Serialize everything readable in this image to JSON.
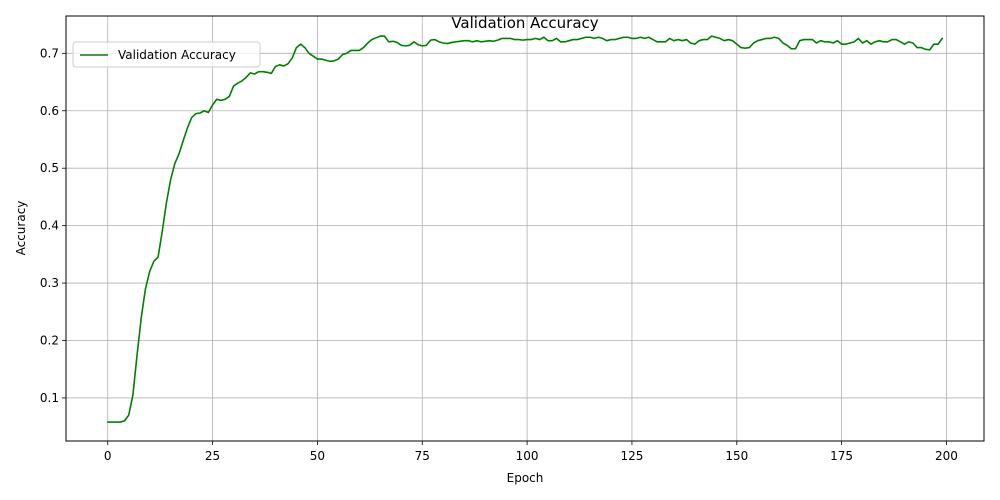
{
  "chart_data": {
    "type": "line",
    "title": "Validation Accuracy",
    "xlabel": "Epoch",
    "ylabel": "Accuracy",
    "xlim": [
      -9.95,
      208.95
    ],
    "ylim": [
      0.025,
      0.765
    ],
    "xticks": [
      0,
      25,
      50,
      75,
      100,
      125,
      150,
      175,
      200
    ],
    "yticks": [
      0.1,
      0.2,
      0.3,
      0.4,
      0.5,
      0.6,
      0.7
    ],
    "xtick_labels": [
      "0",
      "25",
      "50",
      "75",
      "100",
      "125",
      "150",
      "175",
      "200"
    ],
    "ytick_labels": [
      "0.1",
      "0.2",
      "0.3",
      "0.4",
      "0.5",
      "0.6",
      "0.7"
    ],
    "grid": true,
    "legend_position": "top-left",
    "series": [
      {
        "name": "Validation Accuracy",
        "color": "#008000",
        "x": [
          0,
          1,
          2,
          3,
          4,
          5,
          6,
          7,
          8,
          9,
          10,
          11,
          12,
          13,
          14,
          15,
          16,
          17,
          18,
          19,
          20,
          21,
          22,
          23,
          24,
          25,
          26,
          27,
          28,
          29,
          30,
          31,
          32,
          33,
          34,
          35,
          36,
          37,
          38,
          39,
          40,
          41,
          42,
          43,
          44,
          45,
          46,
          47,
          48,
          49,
          50,
          51,
          52,
          53,
          54,
          55,
          56,
          57,
          58,
          59,
          60,
          61,
          62,
          63,
          64,
          65,
          66,
          67,
          68,
          69,
          70,
          71,
          72,
          73,
          74,
          75,
          76,
          77,
          78,
          79,
          80,
          81,
          82,
          83,
          84,
          85,
          86,
          87,
          88,
          89,
          90,
          91,
          92,
          93,
          94,
          95,
          96,
          97,
          98,
          99,
          100,
          101,
          102,
          103,
          104,
          105,
          106,
          107,
          108,
          109,
          110,
          111,
          112,
          113,
          114,
          115,
          116,
          117,
          118,
          119,
          120,
          121,
          122,
          123,
          124,
          125,
          126,
          127,
          128,
          129,
          130,
          131,
          132,
          133,
          134,
          135,
          136,
          137,
          138,
          139,
          140,
          141,
          142,
          143,
          144,
          145,
          146,
          147,
          148,
          149,
          150,
          151,
          152,
          153,
          154,
          155,
          156,
          157,
          158,
          159,
          160,
          161,
          162,
          163,
          164,
          165,
          166,
          167,
          168,
          169,
          170,
          171,
          172,
          173,
          174,
          175,
          176,
          177,
          178,
          179,
          180,
          181,
          182,
          183,
          184,
          185,
          186,
          187,
          188,
          189,
          190,
          191,
          192,
          193,
          194,
          195,
          196,
          197,
          198,
          199
        ],
        "y": [
          0.058,
          0.058,
          0.058,
          0.058,
          0.06,
          0.07,
          0.105,
          0.175,
          0.24,
          0.29,
          0.32,
          0.338,
          0.345,
          0.39,
          0.44,
          0.48,
          0.508,
          0.525,
          0.548,
          0.57,
          0.588,
          0.595,
          0.596,
          0.6,
          0.597,
          0.61,
          0.62,
          0.618,
          0.62,
          0.625,
          0.643,
          0.648,
          0.652,
          0.658,
          0.666,
          0.664,
          0.668,
          0.668,
          0.667,
          0.665,
          0.677,
          0.68,
          0.678,
          0.682,
          0.692,
          0.71,
          0.716,
          0.71,
          0.7,
          0.695,
          0.69,
          0.69,
          0.688,
          0.686,
          0.687,
          0.69,
          0.698,
          0.7,
          0.705,
          0.705,
          0.705,
          0.71,
          0.718,
          0.724,
          0.727,
          0.73,
          0.73,
          0.72,
          0.721,
          0.719,
          0.714,
          0.713,
          0.714,
          0.72,
          0.715,
          0.713,
          0.714,
          0.723,
          0.724,
          0.72,
          0.718,
          0.717,
          0.719,
          0.72,
          0.721,
          0.722,
          0.722,
          0.72,
          0.722,
          0.72,
          0.721,
          0.722,
          0.721,
          0.723,
          0.726,
          0.726,
          0.726,
          0.724,
          0.724,
          0.723,
          0.724,
          0.724,
          0.726,
          0.724,
          0.728,
          0.722,
          0.722,
          0.726,
          0.72,
          0.72,
          0.722,
          0.724,
          0.724,
          0.726,
          0.728,
          0.728,
          0.726,
          0.728,
          0.726,
          0.722,
          0.724,
          0.724,
          0.726,
          0.728,
          0.728,
          0.726,
          0.726,
          0.728,
          0.726,
          0.728,
          0.724,
          0.72,
          0.72,
          0.72,
          0.726,
          0.722,
          0.724,
          0.722,
          0.724,
          0.718,
          0.716,
          0.722,
          0.724,
          0.724,
          0.73,
          0.728,
          0.726,
          0.722,
          0.724,
          0.722,
          0.716,
          0.71,
          0.709,
          0.71,
          0.718,
          0.722,
          0.724,
          0.726,
          0.726,
          0.728,
          0.726,
          0.718,
          0.714,
          0.708,
          0.708,
          0.722,
          0.724,
          0.724,
          0.724,
          0.718,
          0.722,
          0.72,
          0.72,
          0.718,
          0.722,
          0.716,
          0.716,
          0.718,
          0.72,
          0.726,
          0.718,
          0.722,
          0.716,
          0.72,
          0.722,
          0.72,
          0.72,
          0.724,
          0.724,
          0.72,
          0.716,
          0.72,
          0.718,
          0.71,
          0.71,
          0.707,
          0.706,
          0.716,
          0.716,
          0.726
        ]
      }
    ]
  }
}
